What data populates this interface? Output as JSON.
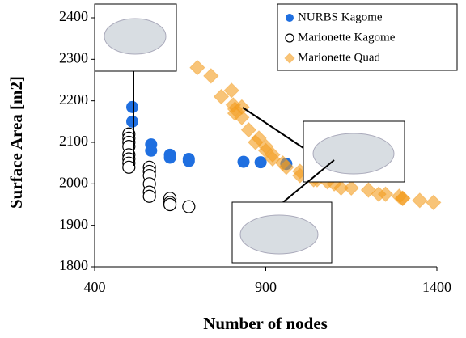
{
  "chart_data": {
    "type": "scatter",
    "x_label": "Number of nodes",
    "y_label": "Surface Area [m2]",
    "xlim": [
      400,
      1400
    ],
    "xticks": [
      400,
      900,
      1400
    ],
    "ylim": [
      1800,
      2400
    ],
    "yticks": [
      1800,
      1900,
      2000,
      2100,
      2200,
      2300,
      2400
    ],
    "grid": false,
    "legend": "upper right",
    "series": [
      {
        "name": "NURBS Kagome",
        "color": "#1f6fe0",
        "marker": "circle",
        "x": [
          510,
          510,
          565,
          565,
          620,
          620,
          675,
          675,
          835,
          885,
          960
        ],
        "values": [
          2185,
          2150,
          2095,
          2080,
          2070,
          2063,
          2060,
          2055,
          2053,
          2052,
          2048
        ]
      },
      {
        "name": "Marionette Kagome",
        "color": "#000000",
        "marker": "open-circle",
        "x": [
          500,
          500,
          500,
          500,
          500,
          500,
          500,
          500,
          560,
          560,
          560,
          560,
          560,
          560,
          620,
          620,
          620,
          675
        ],
        "values": [
          2120,
          2110,
          2100,
          2090,
          2070,
          2060,
          2050,
          2040,
          2040,
          2030,
          2020,
          2000,
          1980,
          1970,
          1965,
          1955,
          1950,
          1945
        ]
      },
      {
        "name": "Marionette Quad",
        "color": "#f39c1e",
        "marker": "diamond",
        "x": [
          700,
          740,
          770,
          800,
          810,
          830,
          850,
          870,
          900,
          920,
          960,
          1000,
          1050,
          1100,
          1150,
          1200,
          1250,
          1300,
          1350,
          1390,
          805,
          830,
          810,
          880,
          900,
          920,
          950,
          1000,
          1040,
          1080,
          1120,
          1230,
          1290,
          1300
        ],
        "values": [
          2280,
          2260,
          2210,
          2225,
          2180,
          2160,
          2130,
          2100,
          2080,
          2060,
          2040,
          2030,
          2010,
          2000,
          1990,
          1985,
          1975,
          1965,
          1960,
          1955,
          2190,
          2185,
          2170,
          2110,
          2090,
          2070,
          2050,
          2020,
          2010,
          2005,
          1990,
          1975,
          1970,
          1965
        ]
      }
    ]
  }
}
